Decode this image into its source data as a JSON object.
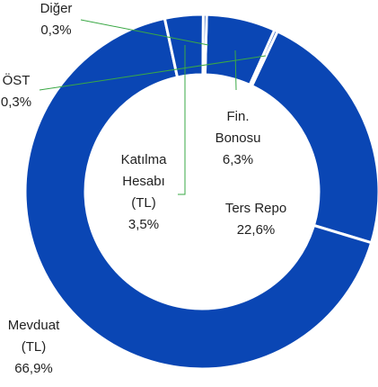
{
  "chart_data": {
    "type": "donut",
    "categories": [
      "Fin. Bonosu",
      "ÖST",
      "Ters Repo",
      "Mevduat (TL)",
      "Katılma Hesabı (TL)",
      "Diğer"
    ],
    "values": [
      6.3,
      0.3,
      22.6,
      66.9,
      3.5,
      0.3
    ],
    "value_labels": [
      "6,3%",
      "0,3%",
      "22,6%",
      "66,9%",
      "3,5%",
      "0,3%"
    ],
    "color": "#0a46b4"
  }
}
